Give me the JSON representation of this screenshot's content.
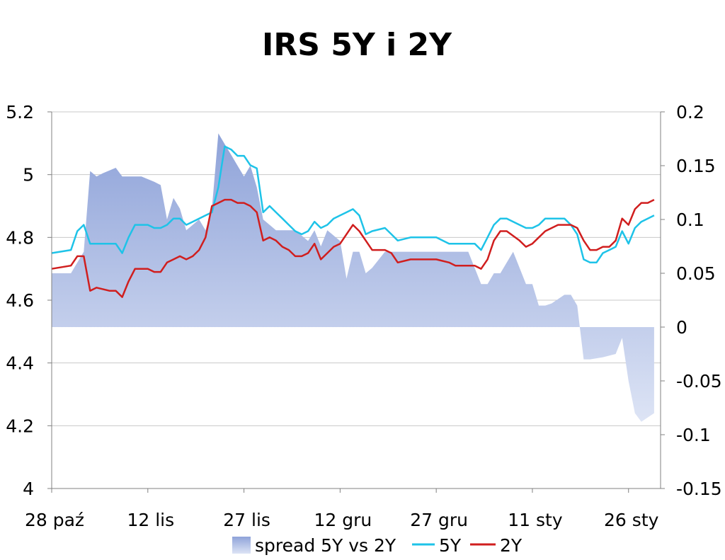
{
  "chart_data": {
    "type": "line+area",
    "title": "IRS 5Y i 2Y",
    "x_tick_labels": [
      "28 paź",
      "12 lis",
      "27 lis",
      "12 gru",
      "27 gru",
      "11 sty",
      "26 sty"
    ],
    "x_tick_days": [
      0,
      15,
      30,
      45,
      60,
      75,
      90
    ],
    "x_range": [
      0,
      95
    ],
    "left_axis": {
      "ylim": [
        4,
        5.2
      ],
      "ticks": [
        4,
        4.2,
        4.4,
        4.6,
        4.8,
        5,
        5.2
      ],
      "tick_labels": [
        "4",
        "4.2",
        "4.4",
        "4.6",
        "4.8",
        "5",
        "5.2"
      ]
    },
    "right_axis": {
      "ylim": [
        -0.15,
        0.2
      ],
      "ticks": [
        -0.15,
        -0.1,
        -0.05,
        0,
        0.05,
        0.1,
        0.15,
        0.2
      ],
      "tick_labels": [
        "-0.15",
        "-0.1",
        "-0.05",
        "0",
        "0.05",
        "0.1",
        "0.15",
        "0.2"
      ]
    },
    "gridlines": true,
    "legend_position": "bottom",
    "series": [
      {
        "name": "spread 5Y vs 2Y",
        "kind": "area",
        "axis": "right",
        "color_top": "#8fa3d9",
        "color_bottom": "#dde4f5",
        "x": [
          0,
          3,
          5,
          6,
          7,
          8,
          10,
          11,
          12,
          14,
          16,
          17,
          18,
          19,
          20,
          21,
          22,
          23,
          24,
          25,
          26,
          27,
          28,
          29,
          30,
          31,
          32,
          33,
          34,
          35,
          36,
          37,
          38,
          39,
          40,
          41,
          42,
          43,
          44,
          45,
          46,
          47,
          48,
          49,
          50,
          52,
          55,
          58,
          61,
          63,
          65,
          67,
          68,
          69,
          70,
          72,
          74,
          75,
          76,
          77,
          78,
          80,
          81,
          82,
          83,
          84,
          86,
          88,
          89,
          90,
          91,
          92,
          94
        ],
        "values": [
          0.05,
          0.05,
          0.07,
          0.145,
          0.14,
          0.143,
          0.148,
          0.14,
          0.14,
          0.14,
          0.135,
          0.132,
          0.1,
          0.12,
          0.11,
          0.09,
          0.095,
          0.1,
          0.09,
          0.11,
          0.18,
          0.17,
          0.16,
          0.15,
          0.14,
          0.15,
          0.13,
          0.1,
          0.095,
          0.09,
          0.09,
          0.09,
          0.09,
          0.085,
          0.08,
          0.09,
          0.075,
          0.09,
          0.085,
          0.08,
          0.045,
          0.07,
          0.07,
          0.05,
          0.055,
          0.07,
          0.07,
          0.07,
          0.07,
          0.07,
          0.07,
          0.04,
          0.04,
          0.05,
          0.05,
          0.07,
          0.04,
          0.04,
          0.02,
          0.02,
          0.022,
          0.03,
          0.03,
          0.02,
          -0.03,
          -0.03,
          -0.028,
          -0.025,
          -0.01,
          -0.05,
          -0.08,
          -0.088,
          -0.08
        ]
      },
      {
        "name": "5Y",
        "kind": "line",
        "axis": "left",
        "color": "#1ec3e8",
        "x": [
          0,
          3,
          4,
          5,
          6,
          7,
          9,
          10,
          11,
          12,
          13,
          15,
          16,
          17,
          18,
          19,
          20,
          21,
          22,
          23,
          24,
          25,
          26,
          27,
          28,
          29,
          30,
          31,
          32,
          33,
          34,
          35,
          36,
          37,
          38,
          39,
          40,
          41,
          42,
          43,
          44,
          45,
          46,
          47,
          48,
          49,
          50,
          52,
          53,
          54,
          56,
          58,
          59,
          60,
          62,
          63,
          64,
          66,
          67,
          68,
          69,
          70,
          71,
          73,
          74,
          75,
          76,
          77,
          79,
          80,
          81,
          82,
          83,
          84,
          85,
          86,
          87,
          88,
          89,
          90,
          91,
          92,
          93,
          94
        ],
        "values": [
          4.75,
          4.76,
          4.82,
          4.84,
          4.78,
          4.78,
          4.78,
          4.78,
          4.75,
          4.8,
          4.84,
          4.84,
          4.83,
          4.83,
          4.84,
          4.86,
          4.86,
          4.84,
          4.85,
          4.86,
          4.87,
          4.88,
          4.96,
          5.09,
          5.08,
          5.06,
          5.06,
          5.03,
          5.02,
          4.88,
          4.9,
          4.88,
          4.86,
          4.84,
          4.82,
          4.81,
          4.82,
          4.85,
          4.83,
          4.84,
          4.86,
          4.87,
          4.88,
          4.89,
          4.87,
          4.81,
          4.82,
          4.83,
          4.81,
          4.79,
          4.8,
          4.8,
          4.8,
          4.8,
          4.78,
          4.78,
          4.78,
          4.78,
          4.76,
          4.8,
          4.84,
          4.86,
          4.86,
          4.84,
          4.83,
          4.83,
          4.84,
          4.86,
          4.86,
          4.86,
          4.84,
          4.81,
          4.73,
          4.72,
          4.72,
          4.75,
          4.76,
          4.77,
          4.82,
          4.78,
          4.83,
          4.85,
          4.86,
          4.87
        ]
      },
      {
        "name": "2Y",
        "kind": "line",
        "axis": "left",
        "color": "#d01e1e",
        "x": [
          0,
          3,
          4,
          5,
          6,
          7,
          9,
          10,
          11,
          12,
          13,
          15,
          16,
          17,
          18,
          19,
          20,
          21,
          22,
          23,
          24,
          25,
          26,
          27,
          28,
          29,
          30,
          31,
          32,
          33,
          34,
          35,
          36,
          37,
          38,
          39,
          40,
          41,
          42,
          43,
          44,
          45,
          46,
          47,
          48,
          49,
          50,
          52,
          53,
          54,
          56,
          58,
          59,
          60,
          62,
          63,
          64,
          66,
          67,
          68,
          69,
          70,
          71,
          73,
          74,
          75,
          76,
          77,
          79,
          80,
          81,
          82,
          83,
          84,
          85,
          86,
          87,
          88,
          89,
          90,
          91,
          92,
          93,
          94
        ],
        "values": [
          4.7,
          4.71,
          4.74,
          4.74,
          4.63,
          4.64,
          4.63,
          4.63,
          4.61,
          4.66,
          4.7,
          4.7,
          4.69,
          4.69,
          4.72,
          4.73,
          4.74,
          4.73,
          4.74,
          4.76,
          4.8,
          4.9,
          4.91,
          4.92,
          4.92,
          4.91,
          4.91,
          4.9,
          4.88,
          4.79,
          4.8,
          4.79,
          4.77,
          4.76,
          4.74,
          4.74,
          4.75,
          4.78,
          4.73,
          4.75,
          4.77,
          4.78,
          4.81,
          4.84,
          4.82,
          4.79,
          4.76,
          4.76,
          4.75,
          4.72,
          4.73,
          4.73,
          4.73,
          4.73,
          4.72,
          4.71,
          4.71,
          4.71,
          4.7,
          4.73,
          4.79,
          4.82,
          4.82,
          4.79,
          4.77,
          4.78,
          4.8,
          4.82,
          4.84,
          4.84,
          4.84,
          4.83,
          4.79,
          4.76,
          4.76,
          4.77,
          4.77,
          4.79,
          4.86,
          4.84,
          4.89,
          4.91,
          4.91,
          4.92
        ]
      }
    ]
  }
}
